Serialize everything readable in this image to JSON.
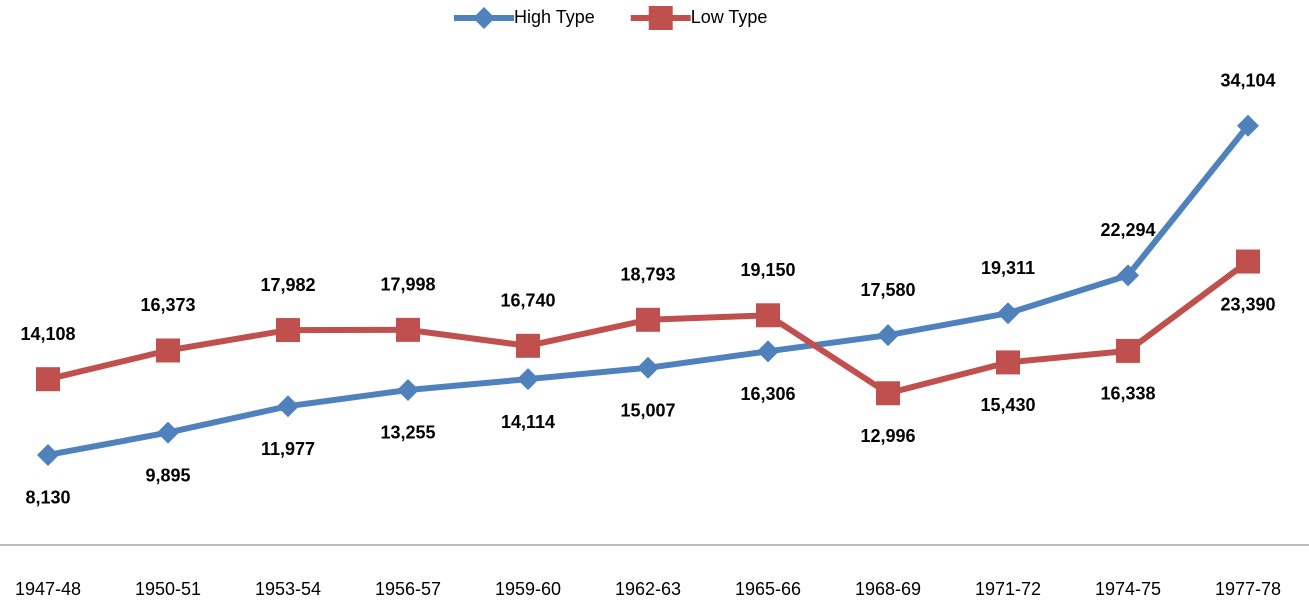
{
  "chart_data": {
    "type": "line",
    "categories": [
      "1947-48",
      "1950-51",
      "1953-54",
      "1956-57",
      "1959-60",
      "1962-63",
      "1965-66",
      "1968-69",
      "1971-72",
      "1974-75",
      "1977-78"
    ],
    "ylim": [
      0,
      40000
    ],
    "legend": "top",
    "series": [
      {
        "name": "High Type",
        "color": "#4f81bd",
        "marker": "diamond",
        "values": [
          8130,
          9895,
          11977,
          13255,
          14114,
          15007,
          16306,
          17580,
          19311,
          22294,
          34104
        ],
        "value_labels": [
          "8,130",
          "9,895",
          "11,977",
          "13,255",
          "14,114",
          "15,007",
          "16,306",
          "17,580",
          "19,311",
          "22,294",
          "34,104"
        ]
      },
      {
        "name": "Low Type",
        "color": "#c0504d",
        "marker": "square",
        "values": [
          14108,
          16373,
          17982,
          17998,
          16740,
          18793,
          19150,
          12996,
          15430,
          16338,
          23390
        ],
        "value_labels": [
          "14,108",
          "16,373",
          "17,982",
          "17,998",
          "16,740",
          "18,793",
          "19,150",
          "12,996",
          "15,430",
          "16,338",
          "23,390"
        ]
      }
    ]
  }
}
